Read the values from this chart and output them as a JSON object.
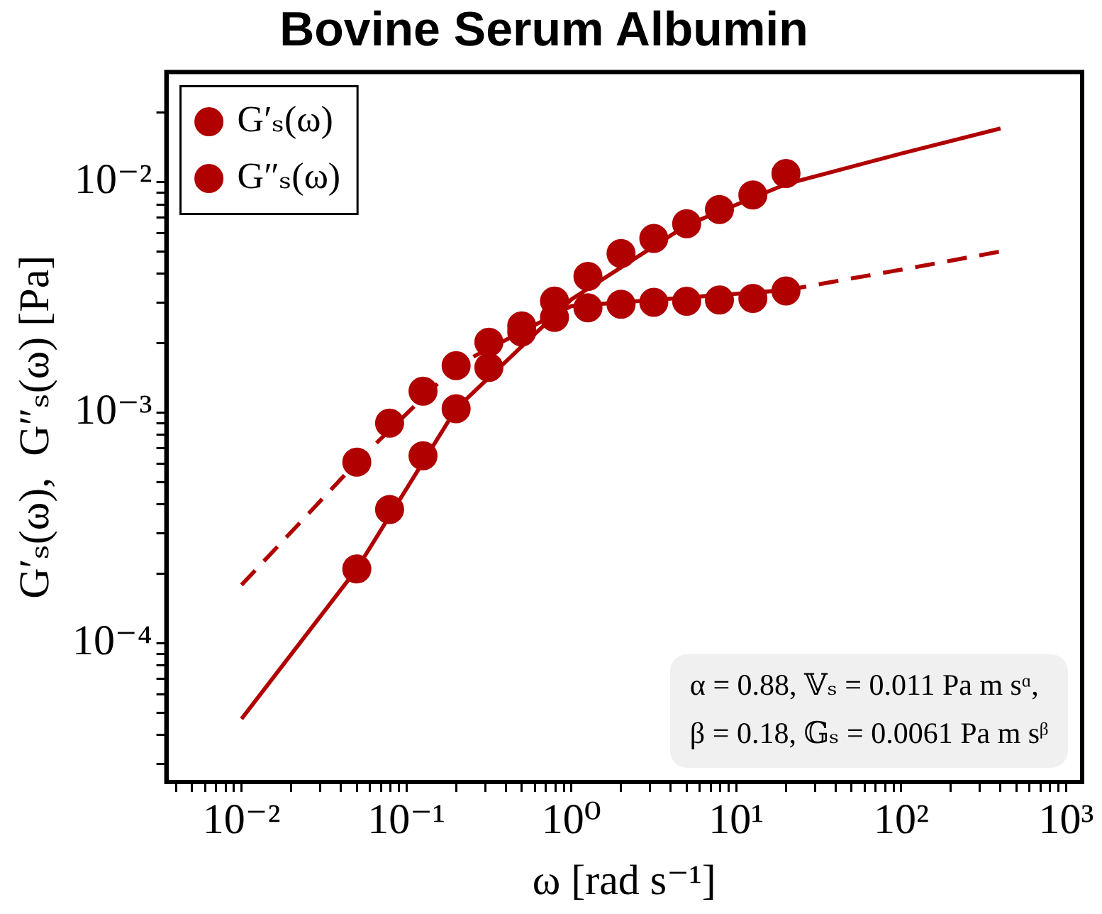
{
  "chart_data": {
    "type": "scatter",
    "title": "Bovine Serum Albumin",
    "xlabel": "ω [rad s⁻¹]",
    "ylabel": "G′ₛ(ω),  G″ₛ(ω) [Pa]",
    "log": "xy",
    "grid": false,
    "legend": "top left",
    "xlim": [
      0.0035,
      1250
    ],
    "xticks": [
      {
        "value": 0.004,
        "label": null
      },
      {
        "value": 0.005,
        "label": null
      },
      {
        "value": 0.006,
        "label": null
      },
      {
        "value": 0.007,
        "label": null
      },
      {
        "value": 0.008,
        "label": null
      },
      {
        "value": 0.009,
        "label": null
      },
      {
        "value": 0.01,
        "label": "10⁻²"
      },
      {
        "value": 0.02,
        "label": null
      },
      {
        "value": 0.03,
        "label": null
      },
      {
        "value": 0.04,
        "label": null
      },
      {
        "value": 0.05,
        "label": null
      },
      {
        "value": 0.06,
        "label": null
      },
      {
        "value": 0.07,
        "label": null
      },
      {
        "value": 0.08,
        "label": null
      },
      {
        "value": 0.09,
        "label": null
      },
      {
        "value": 0.1,
        "label": "10⁻¹"
      },
      {
        "value": 0.2,
        "label": null
      },
      {
        "value": 0.3,
        "label": null
      },
      {
        "value": 0.4,
        "label": null
      },
      {
        "value": 0.5,
        "label": null
      },
      {
        "value": 0.6,
        "label": null
      },
      {
        "value": 0.7,
        "label": null
      },
      {
        "value": 0.8,
        "label": null
      },
      {
        "value": 0.9,
        "label": null
      },
      {
        "value": 1,
        "label": "10⁰"
      },
      {
        "value": 2,
        "label": null
      },
      {
        "value": 3,
        "label": null
      },
      {
        "value": 4,
        "label": null
      },
      {
        "value": 5,
        "label": null
      },
      {
        "value": 6,
        "label": null
      },
      {
        "value": 7,
        "label": null
      },
      {
        "value": 8,
        "label": null
      },
      {
        "value": 9,
        "label": null
      },
      {
        "value": 10,
        "label": "10¹"
      },
      {
        "value": 20,
        "label": null
      },
      {
        "value": 30,
        "label": null
      },
      {
        "value": 40,
        "label": null
      },
      {
        "value": 50,
        "label": null
      },
      {
        "value": 60,
        "label": null
      },
      {
        "value": 70,
        "label": null
      },
      {
        "value": 80,
        "label": null
      },
      {
        "value": 90,
        "label": null
      },
      {
        "value": 100,
        "label": "10²"
      },
      {
        "value": 200,
        "label": null
      },
      {
        "value": 300,
        "label": null
      },
      {
        "value": 400,
        "label": null
      },
      {
        "value": 500,
        "label": null
      },
      {
        "value": 600,
        "label": null
      },
      {
        "value": 700,
        "label": null
      },
      {
        "value": 800,
        "label": null
      },
      {
        "value": 900,
        "label": null
      },
      {
        "value": 1000,
        "label": "10³"
      }
    ],
    "ylim": [
      2.5e-05,
      0.03
    ],
    "yticks": [
      {
        "value": 3e-05,
        "label": null
      },
      {
        "value": 4e-05,
        "label": null
      },
      {
        "value": 5e-05,
        "label": null
      },
      {
        "value": 6e-05,
        "label": null
      },
      {
        "value": 7e-05,
        "label": null
      },
      {
        "value": 8e-05,
        "label": null
      },
      {
        "value": 9e-05,
        "label": null
      },
      {
        "value": 0.0001,
        "label": "10⁻⁴"
      },
      {
        "value": 0.0002,
        "label": null
      },
      {
        "value": 0.0003,
        "label": null
      },
      {
        "value": 0.0004,
        "label": null
      },
      {
        "value": 0.0005,
        "label": null
      },
      {
        "value": 0.0006,
        "label": null
      },
      {
        "value": 0.0007,
        "label": null
      },
      {
        "value": 0.0008,
        "label": null
      },
      {
        "value": 0.0009,
        "label": null
      },
      {
        "value": 0.001,
        "label": "10⁻³"
      },
      {
        "value": 0.002,
        "label": null
      },
      {
        "value": 0.003,
        "label": null
      },
      {
        "value": 0.004,
        "label": null
      },
      {
        "value": 0.005,
        "label": null
      },
      {
        "value": 0.006,
        "label": null
      },
      {
        "value": 0.007,
        "label": null
      },
      {
        "value": 0.008,
        "label": null
      },
      {
        "value": 0.009,
        "label": null
      },
      {
        "value": 0.01,
        "label": "10⁻²"
      },
      {
        "value": 0.02,
        "label": null
      }
    ],
    "annotations": [
      "α = 0.88, 𝕍ₛ = 0.011 Pa m sᵅ,",
      "β = 0.18, 𝔾ₛ = 0.0061 Pa m sᵝ"
    ],
    "series": [
      {
        "name": "G′ₛ(ω)",
        "marker": "circle",
        "color": "#b00000",
        "x": [
          0.05,
          0.079,
          0.126,
          0.2,
          0.316,
          0.5,
          0.79,
          1.26,
          2,
          3.16,
          5,
          7.9,
          12.6,
          20
        ],
        "values": [
          0.00021,
          0.00038,
          0.00065,
          0.00104,
          0.00157,
          0.00224,
          0.00305,
          0.0039,
          0.0049,
          0.0057,
          0.0066,
          0.0076,
          0.0088,
          0.0109
        ]
      },
      {
        "name": "G″ₛ(ω)",
        "marker": "circle",
        "color": "#b00000",
        "x": [
          0.05,
          0.079,
          0.126,
          0.2,
          0.316,
          0.5,
          0.79,
          1.26,
          2,
          3.16,
          5,
          7.9,
          12.6,
          20
        ],
        "values": [
          0.00061,
          0.0009,
          0.00124,
          0.0016,
          0.00202,
          0.00238,
          0.00259,
          0.00285,
          0.00295,
          0.00301,
          0.00304,
          0.00308,
          0.00313,
          0.00337
        ]
      },
      {
        "type": "line",
        "marker": "none",
        "line_style": "solid",
        "color": "#b00000",
        "x": [
          0.01,
          0.05,
          0.2,
          1,
          5,
          20,
          100,
          400
        ],
        "values": [
          4.7e-05,
          0.00021,
          0.00104,
          0.0031,
          0.0065,
          0.0098,
          0.0133,
          0.0171
        ]
      },
      {
        "type": "line",
        "marker": "none",
        "line_style": "dashed",
        "color": "#b00000",
        "x": [
          0.01,
          0.05,
          0.2,
          1,
          20,
          100,
          400
        ],
        "values": [
          0.000179,
          0.00061,
          0.0016,
          0.0029,
          0.0034,
          0.00417,
          0.005
        ]
      }
    ]
  }
}
